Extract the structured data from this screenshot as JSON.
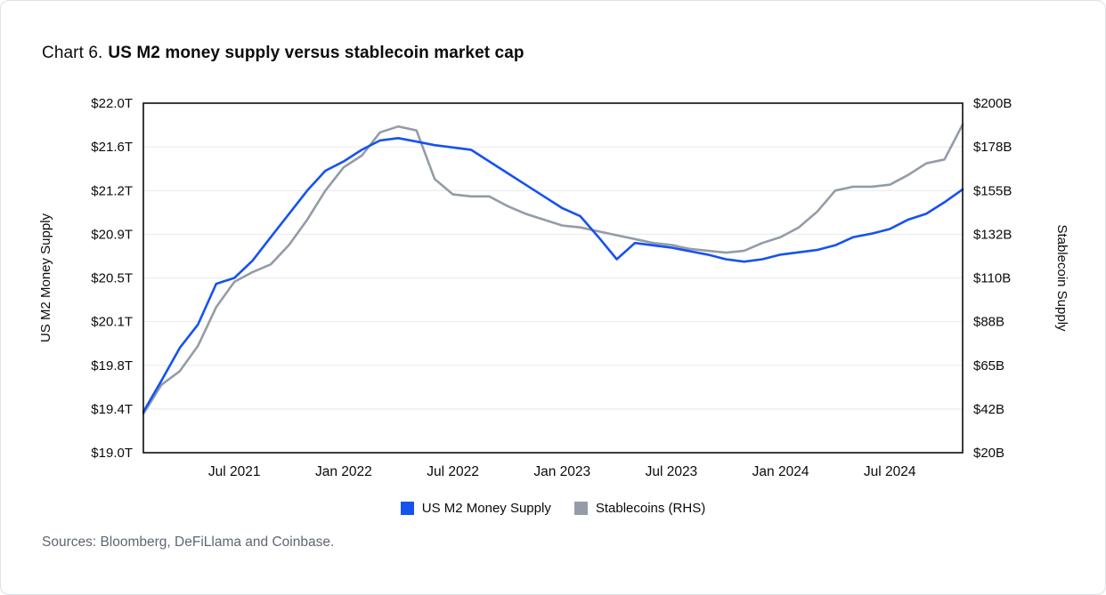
{
  "header": {
    "prefix": "Chart 6.",
    "title": "US M2 money supply versus stablecoin market cap"
  },
  "legend": {
    "items": [
      {
        "label": "US M2 Money Supply",
        "color": "#1652f0"
      },
      {
        "label": "Stablecoins (RHS)",
        "color": "#939ca7"
      }
    ]
  },
  "footer": {
    "sources": "Sources: Bloomberg, DeFiLlama and Coinbase."
  },
  "chart_data": {
    "type": "line",
    "title": "US M2 money supply versus stablecoin market cap",
    "grid": "horizontal",
    "legend_position": "bottom",
    "x": [
      "Feb 2021",
      "Mar 2021",
      "Apr 2021",
      "May 2021",
      "Jun 2021",
      "Jul 2021",
      "Aug 2021",
      "Sep 2021",
      "Oct 2021",
      "Nov 2021",
      "Dec 2021",
      "Jan 2022",
      "Feb 2022",
      "Mar 2022",
      "Apr 2022",
      "May 2022",
      "Jun 2022",
      "Jul 2022",
      "Aug 2022",
      "Sep 2022",
      "Oct 2022",
      "Nov 2022",
      "Dec 2022",
      "Jan 2023",
      "Feb 2023",
      "Mar 2023",
      "Apr 2023",
      "May 2023",
      "Jun 2023",
      "Jul 2023",
      "Aug 2023",
      "Sep 2023",
      "Oct 2023",
      "Nov 2023",
      "Dec 2023",
      "Jan 2024",
      "Feb 2024",
      "Mar 2024",
      "Apr 2024",
      "May 2024",
      "Jun 2024",
      "Jul 2024",
      "Aug 2024",
      "Sep 2024",
      "Oct 2024",
      "Nov 2024"
    ],
    "x_tick_labels": [
      "Jul 2021",
      "Jan 2022",
      "Jul 2022",
      "Jan 2023",
      "Jul 2023",
      "Jan 2024",
      "Jul 2024"
    ],
    "x_tick_indices": [
      5,
      11,
      17,
      23,
      29,
      35,
      41
    ],
    "left_axis": {
      "label": "US M2 Money Supply",
      "min": 19.0,
      "max": 22.0,
      "unit": "trillion USD",
      "tick_labels": [
        "$19.0T",
        "$19.4T",
        "$19.8T",
        "$20.1T",
        "$20.5T",
        "$20.9T",
        "$21.2T",
        "$21.6T",
        "$22.0T"
      ]
    },
    "right_axis": {
      "label": "Stablecoin Supply",
      "min": 20,
      "max": 200,
      "unit": "billion USD",
      "tick_labels": [
        "$20B",
        "$42B",
        "$65B",
        "$88B",
        "$110B",
        "$132B",
        "$155B",
        "$178B",
        "$200B"
      ]
    },
    "series": [
      {
        "name": "US M2 Money Supply",
        "axis": "left",
        "color": "#1652f0",
        "values": [
          19.35,
          19.62,
          19.9,
          20.1,
          20.45,
          20.5,
          20.65,
          20.85,
          21.05,
          21.25,
          21.42,
          21.5,
          21.6,
          21.68,
          21.7,
          21.67,
          21.64,
          21.62,
          21.6,
          21.5,
          21.4,
          21.3,
          21.2,
          21.1,
          21.03,
          20.85,
          20.66,
          20.8,
          20.78,
          20.76,
          20.73,
          20.7,
          20.66,
          20.64,
          20.66,
          20.7,
          20.72,
          20.74,
          20.78,
          20.85,
          20.88,
          20.92,
          21.0,
          21.05,
          21.15,
          21.26
        ]
      },
      {
        "name": "Stablecoins (RHS)",
        "axis": "right",
        "color": "#939ca7",
        "values": [
          40,
          55,
          62,
          75,
          95,
          108,
          113,
          117,
          127,
          140,
          155,
          167,
          173,
          185,
          188,
          186,
          161,
          153,
          152,
          152,
          147,
          143,
          140,
          137,
          136,
          134,
          132,
          130,
          128,
          127,
          125,
          124,
          123,
          124,
          128,
          131,
          136,
          144,
          155,
          157,
          157,
          158,
          163,
          169,
          171,
          189
        ]
      }
    ]
  }
}
